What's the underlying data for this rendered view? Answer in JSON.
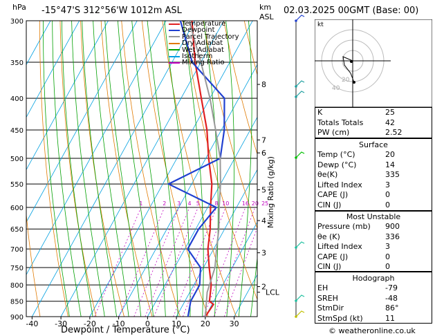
{
  "header": {
    "location": "-15°47'S  312°56'W  1012m  ASL",
    "datetime": "02.03.2025  00GMT  (Base: 00)",
    "units_left": "hPa",
    "units_km": "km",
    "units_asl": "ASL"
  },
  "footer": {
    "credit": "© weatheronline.co.uk"
  },
  "chart_data": {
    "type": "line",
    "title": "",
    "xlabel": "Dewpoint / Temperature (°C)",
    "ylabel": "hPa",
    "mixing_ratio_axis_label": "Mixing Ratio (g/kg)",
    "xlim": [
      -42,
      38
    ],
    "ylim": [
      900,
      300
    ],
    "x_ticks": [
      -40,
      -30,
      -20,
      -10,
      0,
      10,
      20,
      30
    ],
    "pressure_levels": [
      300,
      350,
      400,
      450,
      500,
      550,
      600,
      650,
      700,
      750,
      800,
      850,
      900
    ],
    "km_labels": [
      {
        "p": 380,
        "label": "8"
      },
      {
        "p": 467,
        "label": "7"
      },
      {
        "p": 490,
        "label": "6"
      },
      {
        "p": 562,
        "label": "5"
      },
      {
        "p": 630,
        "label": "4"
      },
      {
        "p": 710,
        "label": "3"
      },
      {
        "p": 805,
        "label": "2"
      },
      {
        "p": 822,
        "label": "LCL"
      }
    ],
    "mixing_ratio_labels": [
      "1",
      "2",
      "3",
      "4",
      "5",
      "8",
      "10",
      "16",
      "20",
      "25"
    ],
    "legend": [
      {
        "name": "Temperature",
        "color": "#e02020"
      },
      {
        "name": "Dewpoint",
        "color": "#2040d0"
      },
      {
        "name": "Parcel Trajectory",
        "color": "#999999"
      },
      {
        "name": "Dry Adiabat",
        "color": "#e07a00"
      },
      {
        "name": "Wet Adiabat",
        "color": "#00a000"
      },
      {
        "name": "Isotherm",
        "color": "#00a0e0"
      },
      {
        "name": "Mixing Ratio",
        "color": "#c000c0"
      }
    ],
    "series": [
      {
        "name": "Temperature",
        "color": "#e02020",
        "points": [
          [
            900,
            20
          ],
          [
            860,
            20.5
          ],
          [
            850,
            18.5
          ],
          [
            800,
            16
          ],
          [
            750,
            12
          ],
          [
            700,
            8
          ],
          [
            650,
            5
          ],
          [
            600,
            1
          ],
          [
            550,
            -3
          ],
          [
            500,
            -9
          ],
          [
            450,
            -15
          ],
          [
            400,
            -23
          ],
          [
            350,
            -32
          ],
          [
            300,
            -41
          ]
        ]
      },
      {
        "name": "Dewpoint",
        "color": "#2040d0",
        "points": [
          [
            900,
            14
          ],
          [
            850,
            12
          ],
          [
            800,
            12
          ],
          [
            750,
            9
          ],
          [
            700,
            1
          ],
          [
            650,
            1
          ],
          [
            600,
            3
          ],
          [
            550,
            -18
          ],
          [
            500,
            -5
          ],
          [
            450,
            -9
          ],
          [
            400,
            -15
          ],
          [
            350,
            -33
          ],
          [
            300,
            -45
          ]
        ]
      },
      {
        "name": "Parcel Trajectory",
        "color": "#999999",
        "points": [
          [
            900,
            20
          ],
          [
            822,
            16
          ],
          [
            750,
            14
          ],
          [
            700,
            11
          ],
          [
            650,
            8
          ],
          [
            600,
            4
          ],
          [
            550,
            0
          ],
          [
            500,
            -5
          ],
          [
            450,
            -12
          ],
          [
            400,
            -20
          ],
          [
            350,
            -30
          ],
          [
            300,
            -42
          ]
        ]
      }
    ]
  },
  "stats": {
    "basic": [
      {
        "label": "K",
        "value": "25"
      },
      {
        "label": "Totals Totals",
        "value": "42"
      },
      {
        "label": "PW (cm)",
        "value": "2.52"
      }
    ],
    "surface_title": "Surface",
    "surface": [
      {
        "label": "Temp (°C)",
        "value": "20"
      },
      {
        "label": "Dewp (°C)",
        "value": "14"
      },
      {
        "label": "θe(K)",
        "value": "335"
      },
      {
        "label": "Lifted Index",
        "value": "3"
      },
      {
        "label": "CAPE (J)",
        "value": "0"
      },
      {
        "label": "CIN (J)",
        "value": "0"
      }
    ],
    "unstable_title": "Most Unstable",
    "unstable": [
      {
        "label": "Pressure (mb)",
        "value": "900"
      },
      {
        "label": "θe (K)",
        "value": "336"
      },
      {
        "label": "Lifted Index",
        "value": "3"
      },
      {
        "label": "CAPE (J)",
        "value": "0"
      },
      {
        "label": "CIN (J)",
        "value": "0"
      }
    ],
    "hodo_title": "Hodograph",
    "hodo": [
      {
        "label": "EH",
        "value": "-79"
      },
      {
        "label": "SREH",
        "value": "-48"
      },
      {
        "label": "StmDir",
        "value": "86°"
      },
      {
        "label": "StmSpd (kt)",
        "value": "11"
      }
    ]
  },
  "hodograph": {
    "label": "kt",
    "ring_labels": [
      "20",
      "40"
    ]
  }
}
